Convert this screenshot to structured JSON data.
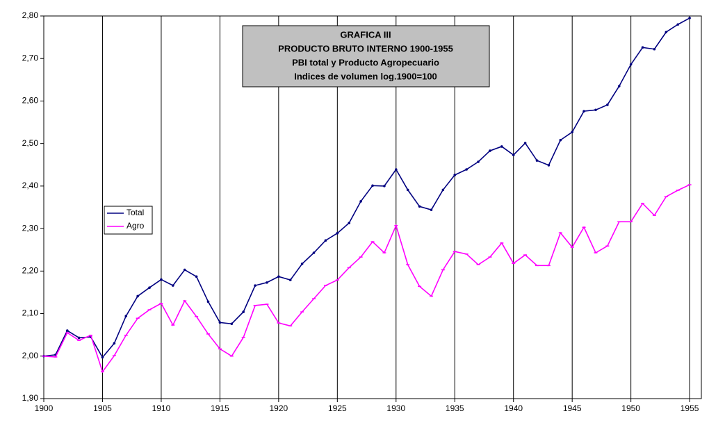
{
  "chart_data": {
    "type": "line",
    "title": [
      "GRAFICA III",
      "PRODUCTO BRUTO INTERNO 1900-1955",
      "PBI total y Producto Agropecuario",
      "Indices de volumen log.1900=100"
    ],
    "x": [
      1900,
      1901,
      1902,
      1903,
      1904,
      1905,
      1906,
      1907,
      1908,
      1909,
      1910,
      1911,
      1912,
      1913,
      1914,
      1915,
      1916,
      1917,
      1918,
      1919,
      1920,
      1921,
      1922,
      1923,
      1924,
      1925,
      1926,
      1927,
      1928,
      1929,
      1930,
      1931,
      1932,
      1933,
      1934,
      1935,
      1936,
      1937,
      1938,
      1939,
      1940,
      1941,
      1942,
      1943,
      1944,
      1945,
      1946,
      1947,
      1948,
      1949,
      1950,
      1951,
      1952,
      1953,
      1954,
      1955
    ],
    "series": [
      {
        "name": "Total",
        "color": "#000080",
        "values": [
          2.0,
          2.003,
          2.06,
          2.043,
          2.045,
          1.997,
          2.03,
          2.094,
          2.141,
          2.161,
          2.18,
          2.166,
          2.203,
          2.187,
          2.128,
          2.079,
          2.076,
          2.104,
          2.166,
          2.173,
          2.187,
          2.179,
          2.217,
          2.243,
          2.272,
          2.289,
          2.313,
          2.364,
          2.401,
          2.4,
          2.439,
          2.391,
          2.352,
          2.344,
          2.391,
          2.426,
          2.439,
          2.457,
          2.483,
          2.493,
          2.473,
          2.501,
          2.46,
          2.449,
          2.508,
          2.527,
          2.576,
          2.579,
          2.591,
          2.635,
          2.686,
          2.726,
          2.722,
          2.762,
          2.78,
          2.795
        ]
      },
      {
        "name": "Agro",
        "color": "#ff00ff",
        "values": [
          2.0,
          1.998,
          2.055,
          2.037,
          2.049,
          1.963,
          2.001,
          2.049,
          2.089,
          2.109,
          2.124,
          2.073,
          2.13,
          2.093,
          2.052,
          2.017,
          2.0,
          2.044,
          2.119,
          2.122,
          2.078,
          2.071,
          2.104,
          2.135,
          2.166,
          2.179,
          2.208,
          2.233,
          2.269,
          2.243,
          2.307,
          2.215,
          2.164,
          2.141,
          2.203,
          2.246,
          2.24,
          2.215,
          2.233,
          2.266,
          2.218,
          2.238,
          2.213,
          2.213,
          2.29,
          2.256,
          2.303,
          2.243,
          2.259,
          2.316,
          2.316,
          2.359,
          2.331,
          2.375,
          2.39,
          2.403
        ]
      }
    ],
    "xlim": [
      1900,
      1956
    ],
    "xticks": [
      1900,
      1905,
      1910,
      1915,
      1920,
      1925,
      1930,
      1935,
      1940,
      1945,
      1950,
      1955
    ],
    "ylim": [
      1.9,
      2.8
    ],
    "yticks": [
      {
        "value": 1.9,
        "label": "1,90"
      },
      {
        "value": 2.0,
        "label": "2,00"
      },
      {
        "value": 2.1,
        "label": "2,10"
      },
      {
        "value": 2.2,
        "label": "2,20"
      },
      {
        "value": 2.3,
        "label": "2,30"
      },
      {
        "value": 2.4,
        "label": "2,40"
      },
      {
        "value": 2.5,
        "label": "2,50"
      },
      {
        "value": 2.6,
        "label": "2,60"
      },
      {
        "value": 2.7,
        "label": "2,70"
      },
      {
        "value": 2.8,
        "label": "2,80"
      }
    ],
    "grid": "x"
  }
}
